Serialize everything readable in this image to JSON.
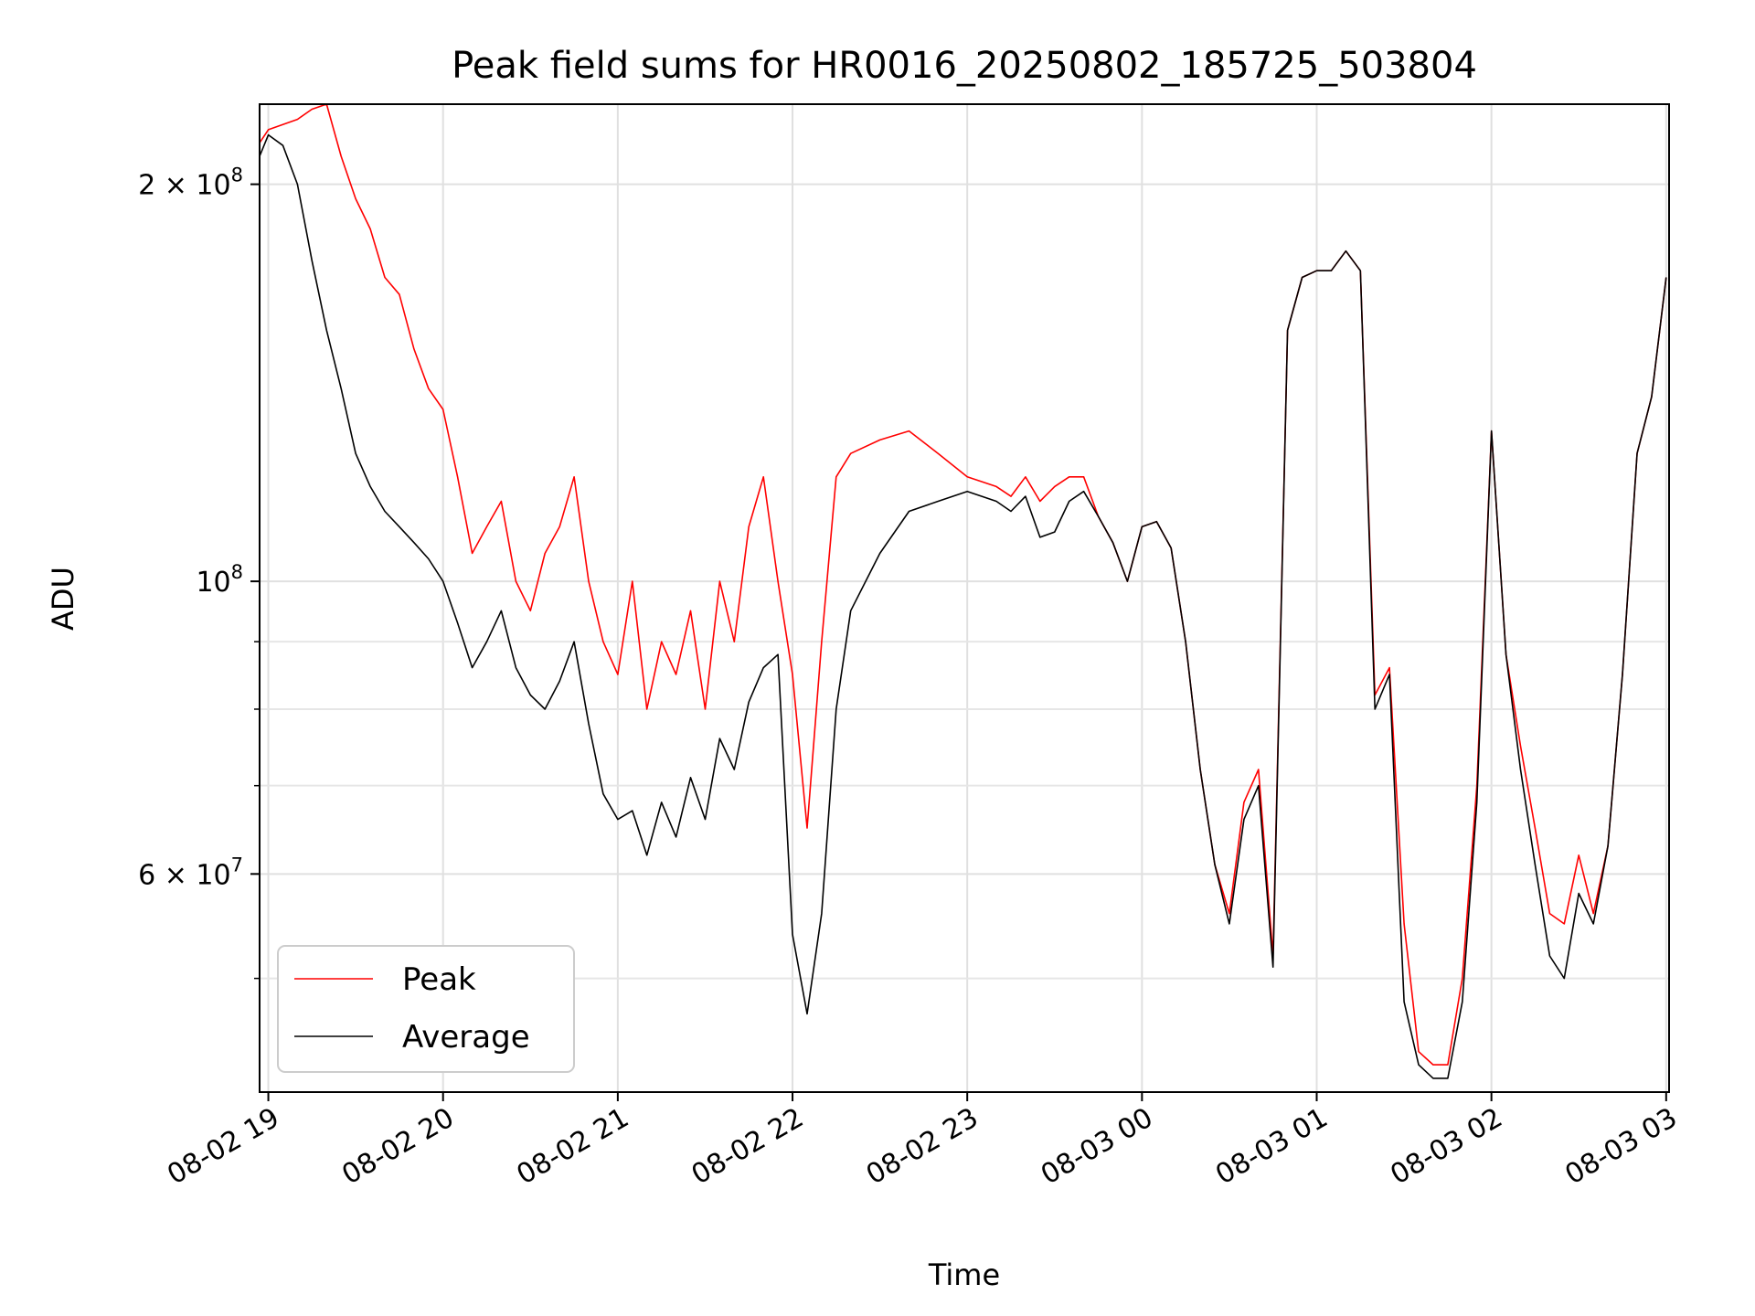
{
  "chart_data": {
    "type": "line",
    "title": "Peak field sums for HR0016_20250802_185725_503804",
    "xlabel": "Time",
    "ylabel": "ADU",
    "x_range": [
      "2025-08-02 18:57",
      "2025-08-03 03:01"
    ],
    "ylim": [
      41000000,
      230000000
    ],
    "y_scale": "log",
    "grid": true,
    "legend_position": "lower-left",
    "x_ticks": [
      {
        "value": "2025-08-02 19:00",
        "label": "08-02 19"
      },
      {
        "value": "2025-08-02 20:00",
        "label": "08-02 20"
      },
      {
        "value": "2025-08-02 21:00",
        "label": "08-02 21"
      },
      {
        "value": "2025-08-02 22:00",
        "label": "08-02 22"
      },
      {
        "value": "2025-08-02 23:00",
        "label": "08-02 23"
      },
      {
        "value": "2025-08-03 00:00",
        "label": "08-03 00"
      },
      {
        "value": "2025-08-03 01:00",
        "label": "08-03 01"
      },
      {
        "value": "2025-08-03 02:00",
        "label": "08-03 02"
      },
      {
        "value": "2025-08-03 03:00",
        "label": "08-03 03"
      }
    ],
    "y_ticks": [
      {
        "value": 200000000,
        "base": "2 × 10",
        "exp": "8"
      },
      {
        "value": 100000000,
        "base": "10",
        "exp": "8"
      },
      {
        "value": 60000000,
        "base": "6 × 10",
        "exp": "7"
      }
    ],
    "series": [
      {
        "name": "Average",
        "color": "#000000",
        "x": [
          "2025-08-02 18:57",
          "2025-08-02 19:00",
          "2025-08-02 19:05",
          "2025-08-02 19:10",
          "2025-08-02 19:15",
          "2025-08-02 19:20",
          "2025-08-02 19:25",
          "2025-08-02 19:30",
          "2025-08-02 19:35",
          "2025-08-02 19:40",
          "2025-08-02 19:45",
          "2025-08-02 19:50",
          "2025-08-02 19:55",
          "2025-08-02 20:00",
          "2025-08-02 20:05",
          "2025-08-02 20:10",
          "2025-08-02 20:15",
          "2025-08-02 20:20",
          "2025-08-02 20:25",
          "2025-08-02 20:30",
          "2025-08-02 20:35",
          "2025-08-02 20:40",
          "2025-08-02 20:45",
          "2025-08-02 20:50",
          "2025-08-02 20:55",
          "2025-08-02 21:00",
          "2025-08-02 21:05",
          "2025-08-02 21:10",
          "2025-08-02 21:15",
          "2025-08-02 21:20",
          "2025-08-02 21:25",
          "2025-08-02 21:30",
          "2025-08-02 21:35",
          "2025-08-02 21:40",
          "2025-08-02 21:45",
          "2025-08-02 21:50",
          "2025-08-02 21:55",
          "2025-08-02 22:00",
          "2025-08-02 22:05",
          "2025-08-02 22:10",
          "2025-08-02 22:15",
          "2025-08-02 22:20",
          "2025-08-02 22:30",
          "2025-08-02 22:40",
          "2025-08-02 22:50",
          "2025-08-02 23:00",
          "2025-08-02 23:10",
          "2025-08-02 23:15",
          "2025-08-02 23:20",
          "2025-08-02 23:25",
          "2025-08-02 23:30",
          "2025-08-02 23:35",
          "2025-08-02 23:40",
          "2025-08-02 23:45",
          "2025-08-02 23:50",
          "2025-08-02 23:55",
          "2025-08-03 00:00",
          "2025-08-03 00:05",
          "2025-08-03 00:10",
          "2025-08-03 00:15",
          "2025-08-03 00:20",
          "2025-08-03 00:25",
          "2025-08-03 00:30",
          "2025-08-03 00:35",
          "2025-08-03 00:40",
          "2025-08-03 00:45",
          "2025-08-03 00:50",
          "2025-08-03 00:55",
          "2025-08-03 01:00",
          "2025-08-03 01:05",
          "2025-08-03 01:10",
          "2025-08-03 01:15",
          "2025-08-03 01:20",
          "2025-08-03 01:25",
          "2025-08-03 01:30",
          "2025-08-03 01:35",
          "2025-08-03 01:40",
          "2025-08-03 01:45",
          "2025-08-03 01:50",
          "2025-08-03 01:55",
          "2025-08-03 02:00",
          "2025-08-03 02:05",
          "2025-08-03 02:10",
          "2025-08-03 02:15",
          "2025-08-03 02:20",
          "2025-08-03 02:25",
          "2025-08-03 02:30",
          "2025-08-03 02:35",
          "2025-08-03 02:40",
          "2025-08-03 02:45",
          "2025-08-03 02:50",
          "2025-08-03 02:55",
          "2025-08-03 03:00"
        ],
        "values": [
          210000000,
          218000000,
          214000000,
          200000000,
          175000000,
          155000000,
          140000000,
          125000000,
          118000000,
          113000000,
          110000000,
          107000000,
          104000000,
          100000000,
          93000000,
          86000000,
          90000000,
          95000000,
          86000000,
          82000000,
          80000000,
          84000000,
          90000000,
          78000000,
          69000000,
          66000000,
          67000000,
          62000000,
          68000000,
          64000000,
          71000000,
          66000000,
          76000000,
          72000000,
          81000000,
          86000000,
          88000000,
          54000000,
          47000000,
          56000000,
          80000000,
          95000000,
          105000000,
          113000000,
          115000000,
          117000000,
          115000000,
          113000000,
          116000000,
          108000000,
          109000000,
          115000000,
          117000000,
          112000000,
          107000000,
          100000000,
          110000000,
          111000000,
          106000000,
          90000000,
          72000000,
          61000000,
          55000000,
          66000000,
          70000000,
          51000000,
          155000000,
          170000000,
          172000000,
          172000000,
          178000000,
          172000000,
          80000000,
          85000000,
          48000000,
          43000000,
          42000000,
          42000000,
          48000000,
          68000000,
          130000000,
          88000000,
          72000000,
          61000000,
          52000000,
          50000000,
          58000000,
          55000000,
          63000000,
          85000000,
          125000000,
          138000000,
          170000000
        ]
      },
      {
        "name": "Peak",
        "color": "#ff0000",
        "x": [
          "2025-08-02 18:57",
          "2025-08-02 19:00",
          "2025-08-02 19:05",
          "2025-08-02 19:10",
          "2025-08-02 19:15",
          "2025-08-02 19:20",
          "2025-08-02 19:25",
          "2025-08-02 19:30",
          "2025-08-02 19:35",
          "2025-08-02 19:40",
          "2025-08-02 19:45",
          "2025-08-02 19:50",
          "2025-08-02 19:55",
          "2025-08-02 20:00",
          "2025-08-02 20:05",
          "2025-08-02 20:10",
          "2025-08-02 20:15",
          "2025-08-02 20:20",
          "2025-08-02 20:25",
          "2025-08-02 20:30",
          "2025-08-02 20:35",
          "2025-08-02 20:40",
          "2025-08-02 20:45",
          "2025-08-02 20:50",
          "2025-08-02 20:55",
          "2025-08-02 21:00",
          "2025-08-02 21:05",
          "2025-08-02 21:10",
          "2025-08-02 21:15",
          "2025-08-02 21:20",
          "2025-08-02 21:25",
          "2025-08-02 21:30",
          "2025-08-02 21:35",
          "2025-08-02 21:40",
          "2025-08-02 21:45",
          "2025-08-02 21:50",
          "2025-08-02 21:55",
          "2025-08-02 22:00",
          "2025-08-02 22:05",
          "2025-08-02 22:10",
          "2025-08-02 22:15",
          "2025-08-02 22:20",
          "2025-08-02 22:30",
          "2025-08-02 22:40",
          "2025-08-02 22:50",
          "2025-08-02 23:00",
          "2025-08-02 23:10",
          "2025-08-02 23:15",
          "2025-08-02 23:20",
          "2025-08-02 23:25",
          "2025-08-02 23:30",
          "2025-08-02 23:35",
          "2025-08-02 23:40",
          "2025-08-02 23:45",
          "2025-08-02 23:50",
          "2025-08-02 23:55",
          "2025-08-03 00:00",
          "2025-08-03 00:05",
          "2025-08-03 00:10",
          "2025-08-03 00:15",
          "2025-08-03 00:20",
          "2025-08-03 00:25",
          "2025-08-03 00:30",
          "2025-08-03 00:35",
          "2025-08-03 00:40",
          "2025-08-03 00:45",
          "2025-08-03 00:50",
          "2025-08-03 00:55",
          "2025-08-03 01:00",
          "2025-08-03 01:05",
          "2025-08-03 01:10",
          "2025-08-03 01:15",
          "2025-08-03 01:20",
          "2025-08-03 01:25",
          "2025-08-03 01:30",
          "2025-08-03 01:35",
          "2025-08-03 01:40",
          "2025-08-03 01:45",
          "2025-08-03 01:50",
          "2025-08-03 01:55",
          "2025-08-03 02:00",
          "2025-08-03 02:05",
          "2025-08-03 02:10",
          "2025-08-03 02:15",
          "2025-08-03 02:20",
          "2025-08-03 02:25",
          "2025-08-03 02:30",
          "2025-08-03 02:35",
          "2025-08-03 02:40",
          "2025-08-03 02:45",
          "2025-08-03 02:50",
          "2025-08-03 02:55",
          "2025-08-03 03:00"
        ],
        "values": [
          215000000,
          220000000,
          222000000,
          224000000,
          228000000,
          230000000,
          210000000,
          195000000,
          185000000,
          170000000,
          165000000,
          150000000,
          140000000,
          135000000,
          120000000,
          105000000,
          110000000,
          115000000,
          100000000,
          95000000,
          105000000,
          110000000,
          120000000,
          100000000,
          90000000,
          85000000,
          100000000,
          80000000,
          90000000,
          85000000,
          95000000,
          80000000,
          100000000,
          90000000,
          110000000,
          120000000,
          100000000,
          85000000,
          65000000,
          90000000,
          120000000,
          125000000,
          128000000,
          130000000,
          125000000,
          120000000,
          118000000,
          116000000,
          120000000,
          115000000,
          118000000,
          120000000,
          120000000,
          112000000,
          107000000,
          100000000,
          110000000,
          111000000,
          106000000,
          90000000,
          72000000,
          61000000,
          56000000,
          68000000,
          72000000,
          52000000,
          155000000,
          170000000,
          172000000,
          172000000,
          178000000,
          172000000,
          82000000,
          86000000,
          55000000,
          44000000,
          43000000,
          43000000,
          50000000,
          70000000,
          130000000,
          88000000,
          75000000,
          65000000,
          56000000,
          55000000,
          62000000,
          56000000,
          63000000,
          85000000,
          125000000,
          138000000,
          170000000
        ]
      }
    ],
    "legend": [
      {
        "name": "Peak",
        "color": "#ff0000"
      },
      {
        "name": "Average",
        "color": "#000000"
      }
    ]
  }
}
